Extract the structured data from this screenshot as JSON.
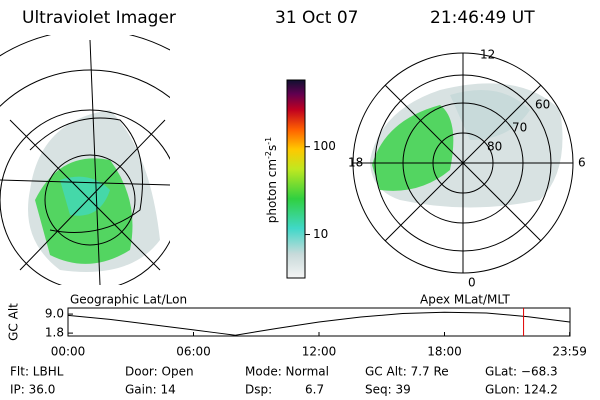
{
  "header": {
    "instrument": "Ultraviolet Imager",
    "date": "31 Oct 07",
    "time": "21:46:49 UT"
  },
  "colorbar": {
    "unit": "photon cm",
    "exp1": "-2",
    "unit2": "s",
    "exp2": "-1",
    "log": true,
    "clim": [
      3.2,
      575
    ],
    "ticks": [
      10,
      100
    ]
  },
  "polar": {
    "mlt_labels": [
      "12",
      "18",
      "6",
      "0"
    ],
    "lat_labels": [
      "60",
      "70",
      "80"
    ]
  },
  "map_titles": {
    "left": "Geographic Lat/Lon",
    "right": "Apex MLat/MLT"
  },
  "alt_plot": {
    "type": "line",
    "ylabel": "GC Alt",
    "xlim": [
      0,
      24
    ],
    "ylim": [
      0.7,
      11.3
    ],
    "yticks": [
      {
        "value": 9,
        "label": "9.0"
      },
      1.8
    ],
    "xticks": [
      {
        "value": 0,
        "label": "00:00"
      },
      {
        "value": 6,
        "label": "06:00"
      },
      {
        "value": 12,
        "label": "12:00"
      },
      {
        "value": 18,
        "label": "18:00"
      },
      {
        "value": 23.983,
        "label": "23:59"
      }
    ],
    "x": [
      0,
      2,
      4,
      6,
      7,
      8,
      9,
      10,
      12,
      14,
      16,
      18,
      20,
      22,
      23.983
    ],
    "values": [
      8.5,
      7.0,
      5.0,
      3.0,
      2.0,
      1.0,
      2.3,
      3.6,
      6.0,
      7.9,
      9.2,
      9.7,
      9.4,
      8.0,
      6.0
    ],
    "current_x": 21.78
  },
  "footer": [
    [
      "Flt: LBHL",
      "IP: 36.0"
    ],
    [
      "Door: Open",
      "Gain: 14"
    ],
    [
      "Mode: Normal",
      "Dsp:",
      "6.7"
    ],
    [
      "GC Alt: 7.7 Re",
      "Seq: 39"
    ],
    [
      "GLat: −68.3",
      "GLon: 124.2"
    ]
  ]
}
